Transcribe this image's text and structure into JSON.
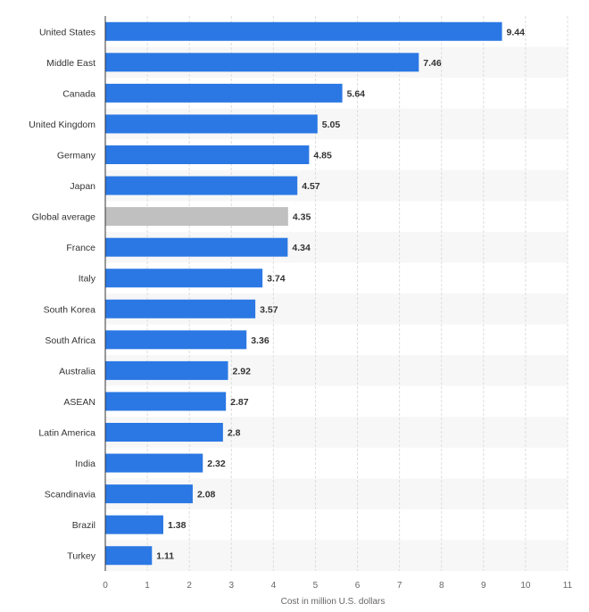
{
  "chart_data": {
    "type": "bar",
    "orientation": "horizontal",
    "categories": [
      "United States",
      "Middle East",
      "Canada",
      "United Kingdom",
      "Germany",
      "Japan",
      "Global average",
      "France",
      "Italy",
      "South Korea",
      "South Africa",
      "Australia",
      "ASEAN",
      "Latin America",
      "India",
      "Scandinavia",
      "Brazil",
      "Turkey"
    ],
    "values": [
      9.44,
      7.46,
      5.64,
      5.05,
      4.85,
      4.57,
      4.35,
      4.34,
      3.74,
      3.57,
      3.36,
      2.92,
      2.87,
      2.8,
      2.32,
      2.08,
      1.38,
      1.11
    ],
    "value_labels": [
      "9.44",
      "7.46",
      "5.64",
      "5.05",
      "4.85",
      "4.57",
      "4.35",
      "4.34",
      "3.74",
      "3.57",
      "3.36",
      "2.92",
      "2.87",
      "2.8",
      "2.32",
      "2.08",
      "1.38",
      "1.11"
    ],
    "highlight_category": "Global average",
    "xlabel": "Cost in million U.S. dollars",
    "ylabel": "",
    "xlim": [
      0,
      11
    ],
    "xticks": [
      "0",
      "1",
      "2",
      "3",
      "4",
      "5",
      "6",
      "7",
      "8",
      "9",
      "10",
      "11"
    ],
    "grid": true,
    "legend": "none",
    "colors": {
      "bar": "#2b78e4",
      "highlight": "#c0c0c0",
      "row_band": "#f7f7f7",
      "gridline": "#dddddd",
      "axis": "#333333"
    }
  }
}
